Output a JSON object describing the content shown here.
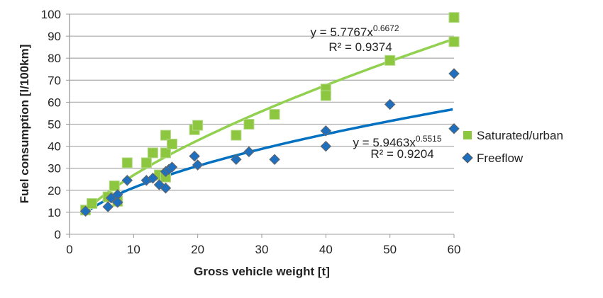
{
  "chart_data": {
    "type": "scatter",
    "title": "",
    "xlabel": "Gross vehicle weight [t]",
    "ylabel": "Fuel consumption [l/100km]",
    "xlim": [
      0,
      60
    ],
    "ylim": [
      0,
      100
    ],
    "xticks": [
      0,
      10,
      20,
      30,
      40,
      50,
      60
    ],
    "yticks": [
      0,
      10,
      20,
      30,
      40,
      50,
      60,
      70,
      80,
      90,
      100
    ],
    "grid": "horizontal",
    "legend_position": "right",
    "series": [
      {
        "name": "Saturated/urban",
        "marker": "square",
        "color": "#8dc63f",
        "trend_color": "#92d050",
        "trendline": {
          "type": "power",
          "a": 5.7767,
          "b": 0.6672,
          "equation": "y = 5.7767x",
          "exponent": "0.6672",
          "r2": "R² = 0.9374"
        },
        "x": [
          2.5,
          3.5,
          6,
          7,
          7.5,
          9,
          12,
          13,
          14,
          15,
          15,
          15,
          16,
          19.5,
          20,
          26,
          28,
          32,
          40,
          40,
          50,
          60,
          60
        ],
        "y": [
          11,
          14,
          17,
          22,
          15,
          32.5,
          32.5,
          37,
          27,
          45,
          37,
          26,
          41,
          47.5,
          49.5,
          45,
          50,
          54.5,
          66,
          63,
          79,
          98.5,
          87.5
        ]
      },
      {
        "name": "Freeflow",
        "marker": "diamond",
        "color": "#1f6fbf",
        "trend_color": "#0070c0",
        "trendline": {
          "type": "power",
          "a": 5.9463,
          "b": 0.5515,
          "equation": "y = 5.9463x",
          "exponent": "0.5515",
          "r2": "R² = 0.9204"
        },
        "x": [
          2.5,
          6,
          6.5,
          7.5,
          7.5,
          9,
          12,
          13,
          14,
          15,
          15,
          15.5,
          16,
          19.5,
          20,
          26,
          28,
          32,
          40,
          40,
          50,
          60,
          60
        ],
        "y": [
          10.5,
          12.5,
          16.5,
          18,
          14.5,
          24.5,
          24.5,
          25.5,
          22.5,
          21,
          28.5,
          29.5,
          30.5,
          35.5,
          31.5,
          34,
          37.5,
          34,
          47,
          40,
          59,
          73,
          48
        ]
      }
    ]
  }
}
